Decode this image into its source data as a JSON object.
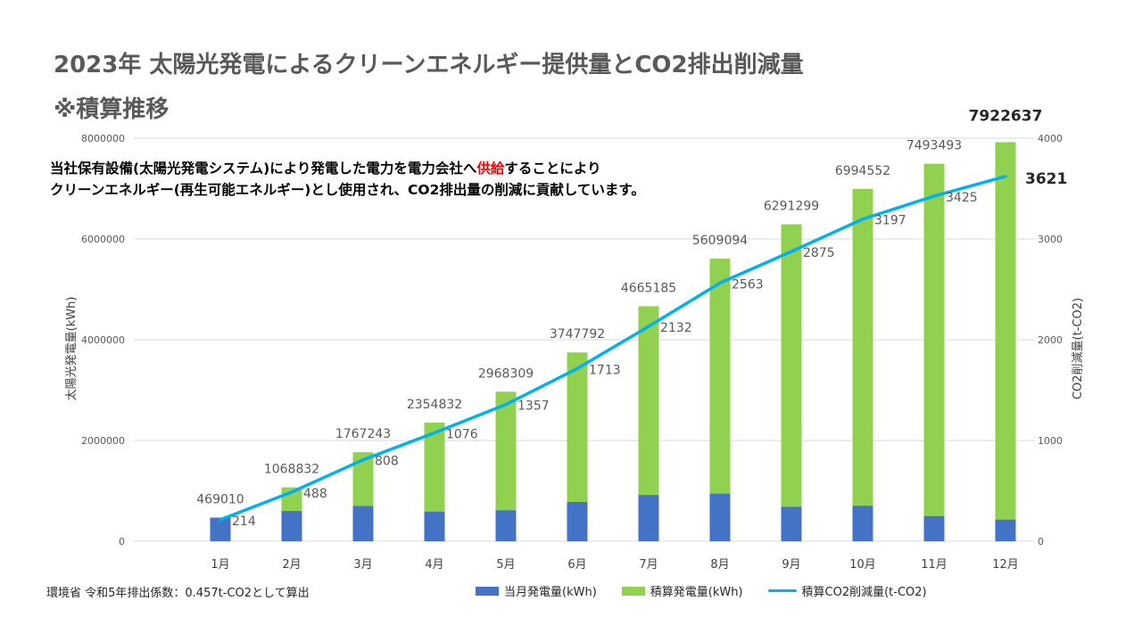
{
  "title": "2023年  太陽光発電によるクリーンエネルギー提供量とCO2排出削減量",
  "subtitle": "※積算推移",
  "description": {
    "line1_before": "当社保有設備(太陽光発電システム)により発電した電力を電力会社へ",
    "line1_highlight": "供給",
    "line1_after": "することにより",
    "line2": "クリーンエネルギー(再生可能エネルギー)とし使用され、CO2排出量の削減に貢献しています。"
  },
  "footnote": "環境省 令和5年排出係数：0.457t-CO2として算出",
  "colors": {
    "monthly": "#4472c4",
    "cumulative": "#92d050",
    "co2": "#00b0f0",
    "highlight": "#ff0000"
  },
  "chart_data": {
    "type": "bar",
    "stacked": true,
    "categories": [
      "1月",
      "2月",
      "3月",
      "4月",
      "5月",
      "6月",
      "7月",
      "8月",
      "9月",
      "10月",
      "11月",
      "12月"
    ],
    "series": [
      {
        "name": "当月発電量(kWh)",
        "type": "bar",
        "axis": "left",
        "values": [
          469010,
          599822,
          698411,
          587589,
          613477,
          779483,
          917393,
          943909,
          682205,
          703253,
          498941,
          429144
        ]
      },
      {
        "name": "積算発電量(kWh)",
        "type": "bar",
        "axis": "left",
        "values": [
          469010,
          1068832,
          1767243,
          2354832,
          2968309,
          3747792,
          4665185,
          5609094,
          6291299,
          6994552,
          7493493,
          7922637
        ]
      },
      {
        "name": "積算CO2削減量(t-CO2)",
        "type": "line",
        "axis": "right",
        "values": [
          214,
          488,
          808,
          1076,
          1357,
          1713,
          2132,
          2563,
          2875,
          3197,
          3425,
          3621
        ]
      }
    ],
    "ylabel_left": "太陽光発電量(kWh)",
    "ylabel_right": "CO2削減量(t-CO2)",
    "ylim_left": [
      0,
      8000000
    ],
    "ylim_right": [
      0,
      4000
    ],
    "yticks_left": [
      "0",
      "2000000",
      "4000000",
      "6000000",
      "8000000"
    ],
    "yticks_right": [
      "0",
      "1000",
      "2000",
      "3000",
      "4000"
    ],
    "grid": true,
    "legend_position": "bottom"
  }
}
